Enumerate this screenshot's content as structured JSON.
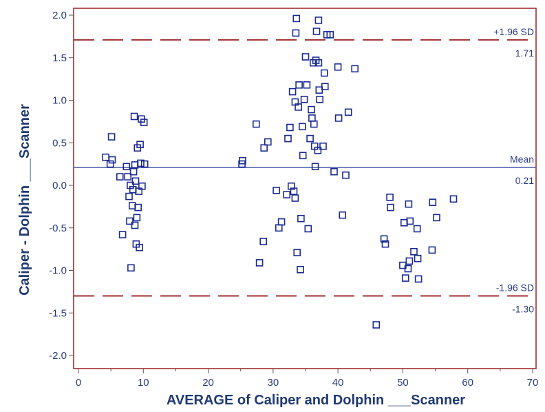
{
  "chart_data": {
    "type": "scatter",
    "xlabel": "AVERAGE of Caliper and Dolphin ___Scanner",
    "ylabel": "Caliper - Dolphin ___Scanner",
    "xlim": [
      0,
      70
    ],
    "ylim": [
      -2.0,
      2.0
    ],
    "xticks": [
      "0",
      "10",
      "20",
      "30",
      "40",
      "50",
      "60",
      "70"
    ],
    "yticks": [
      "2.0",
      "1.5",
      "1.0",
      "0.5",
      "0.0",
      "-0.5",
      "-1.0",
      "-1.5",
      "-2.0"
    ],
    "grid": false,
    "lines": [
      {
        "label": "+1.96 SD",
        "value_label": "1.71",
        "y": 1.71,
        "style": "dashed",
        "color": "#a03030"
      },
      {
        "label": "Mean",
        "value_label": "0.21",
        "y": 0.21,
        "style": "solid",
        "color": "#5060b0"
      },
      {
        "label": "-1.96 SD",
        "value_label": "-1.30",
        "y": -1.3,
        "style": "dashed",
        "color": "#a03030"
      }
    ],
    "colors": {
      "points": "#1a2a90",
      "frame": "#a03030",
      "axis_text": "#2a3a80",
      "title": "#1f3a73"
    },
    "points": [
      {
        "x": 4.2,
        "y": 0.33
      },
      {
        "x": 5.1,
        "y": 0.57
      },
      {
        "x": 5.2,
        "y": 0.3
      },
      {
        "x": 4.9,
        "y": 0.25
      },
      {
        "x": 6.4,
        "y": 0.1
      },
      {
        "x": 6.8,
        "y": -0.58
      },
      {
        "x": 7.4,
        "y": 0.22
      },
      {
        "x": 7.6,
        "y": 0.1
      },
      {
        "x": 7.8,
        "y": -0.13
      },
      {
        "x": 7.9,
        "y": -0.42
      },
      {
        "x": 8.1,
        "y": -0.97
      },
      {
        "x": 8.0,
        "y": 0.0
      },
      {
        "x": 8.3,
        "y": -0.24
      },
      {
        "x": 8.4,
        "y": -0.05
      },
      {
        "x": 8.5,
        "y": 0.16
      },
      {
        "x": 8.6,
        "y": 0.81
      },
      {
        "x": 8.7,
        "y": -0.47
      },
      {
        "x": 8.7,
        "y": 0.24
      },
      {
        "x": 8.8,
        "y": 0.05
      },
      {
        "x": 8.9,
        "y": -0.69
      },
      {
        "x": 9.0,
        "y": -0.38
      },
      {
        "x": 9.1,
        "y": 0.44
      },
      {
        "x": 9.2,
        "y": -0.26
      },
      {
        "x": 9.3,
        "y": -0.07
      },
      {
        "x": 9.4,
        "y": -0.73
      },
      {
        "x": 9.5,
        "y": 0.48
      },
      {
        "x": 9.6,
        "y": 0.26
      },
      {
        "x": 9.7,
        "y": 0.78
      },
      {
        "x": 9.8,
        "y": -0.01
      },
      {
        "x": 10.1,
        "y": 0.74
      },
      {
        "x": 10.2,
        "y": 0.25
      },
      {
        "x": 25.2,
        "y": 0.25
      },
      {
        "x": 25.3,
        "y": 0.29
      },
      {
        "x": 27.4,
        "y": 0.72
      },
      {
        "x": 27.9,
        "y": -0.91
      },
      {
        "x": 28.5,
        "y": -0.66
      },
      {
        "x": 28.6,
        "y": 0.44
      },
      {
        "x": 29.2,
        "y": 0.51
      },
      {
        "x": 30.5,
        "y": -0.06
      },
      {
        "x": 30.9,
        "y": -0.5
      },
      {
        "x": 31.3,
        "y": -0.43
      },
      {
        "x": 32.1,
        "y": -0.11
      },
      {
        "x": 32.3,
        "y": 0.55
      },
      {
        "x": 32.6,
        "y": 0.68
      },
      {
        "x": 32.8,
        "y": -0.01
      },
      {
        "x": 33.0,
        "y": 1.1
      },
      {
        "x": 33.2,
        "y": -0.07
      },
      {
        "x": 33.4,
        "y": 0.98
      },
      {
        "x": 33.4,
        "y": -0.15
      },
      {
        "x": 33.5,
        "y": 1.79
      },
      {
        "x": 33.6,
        "y": 1.96
      },
      {
        "x": 33.7,
        "y": -0.79
      },
      {
        "x": 33.9,
        "y": 0.92
      },
      {
        "x": 34.0,
        "y": 1.18
      },
      {
        "x": 34.2,
        "y": -0.99
      },
      {
        "x": 34.3,
        "y": -0.39
      },
      {
        "x": 34.5,
        "y": 0.69
      },
      {
        "x": 34.6,
        "y": 0.35
      },
      {
        "x": 34.8,
        "y": 1.01
      },
      {
        "x": 35.0,
        "y": 1.51
      },
      {
        "x": 35.2,
        "y": 1.18
      },
      {
        "x": 35.4,
        "y": -0.51
      },
      {
        "x": 35.7,
        "y": 0.55
      },
      {
        "x": 35.9,
        "y": 0.89
      },
      {
        "x": 36.0,
        "y": 0.79
      },
      {
        "x": 36.2,
        "y": 1.44
      },
      {
        "x": 36.3,
        "y": 0.72
      },
      {
        "x": 36.4,
        "y": 0.46
      },
      {
        "x": 36.5,
        "y": 0.22
      },
      {
        "x": 36.6,
        "y": 1.47
      },
      {
        "x": 36.7,
        "y": 1.81
      },
      {
        "x": 36.9,
        "y": 0.41
      },
      {
        "x": 37.0,
        "y": 1.44
      },
      {
        "x": 37.0,
        "y": 1.94
      },
      {
        "x": 37.1,
        "y": 1.12
      },
      {
        "x": 37.2,
        "y": 1.01
      },
      {
        "x": 37.7,
        "y": 0.46
      },
      {
        "x": 37.9,
        "y": 1.32
      },
      {
        "x": 38.0,
        "y": 1.16
      },
      {
        "x": 38.3,
        "y": 1.77
      },
      {
        "x": 38.8,
        "y": 1.77
      },
      {
        "x": 39.4,
        "y": 0.16
      },
      {
        "x": 40.0,
        "y": 1.39
      },
      {
        "x": 40.1,
        "y": 0.79
      },
      {
        "x": 40.7,
        "y": -0.35
      },
      {
        "x": 41.2,
        "y": 0.12
      },
      {
        "x": 41.6,
        "y": 0.86
      },
      {
        "x": 42.6,
        "y": 1.37
      },
      {
        "x": 45.9,
        "y": -1.64
      },
      {
        "x": 47.1,
        "y": -0.63
      },
      {
        "x": 47.3,
        "y": -0.69
      },
      {
        "x": 48.0,
        "y": -0.14
      },
      {
        "x": 48.1,
        "y": -0.26
      },
      {
        "x": 50.0,
        "y": -0.94
      },
      {
        "x": 50.2,
        "y": -0.44
      },
      {
        "x": 50.4,
        "y": -1.09
      },
      {
        "x": 50.8,
        "y": -0.98
      },
      {
        "x": 50.9,
        "y": -0.22
      },
      {
        "x": 51.0,
        "y": -0.89
      },
      {
        "x": 51.1,
        "y": -0.42
      },
      {
        "x": 51.7,
        "y": -0.78
      },
      {
        "x": 52.2,
        "y": -0.51
      },
      {
        "x": 52.3,
        "y": -0.86
      },
      {
        "x": 52.4,
        "y": -1.1
      },
      {
        "x": 54.5,
        "y": -0.76
      },
      {
        "x": 54.6,
        "y": -0.2
      },
      {
        "x": 55.2,
        "y": -0.38
      },
      {
        "x": 57.8,
        "y": -0.16
      }
    ]
  }
}
